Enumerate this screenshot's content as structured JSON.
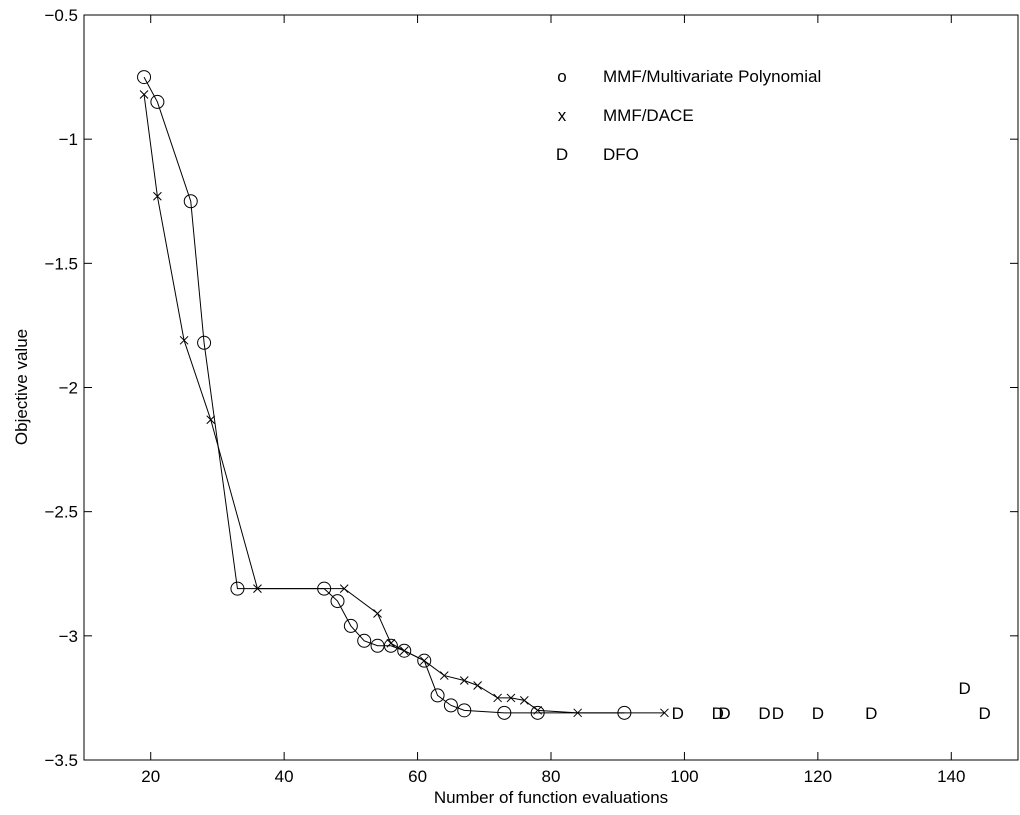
{
  "chart_data": {
    "type": "line",
    "title": "",
    "xlabel": "Number of function evaluations",
    "ylabel": "Objective value",
    "xlim": [
      10,
      150
    ],
    "ylim": [
      -3.5,
      -0.5
    ],
    "xticks": [
      20,
      40,
      60,
      80,
      100,
      120,
      140
    ],
    "yticks": [
      -0.5,
      -1,
      -1.5,
      -2,
      -2.5,
      -3,
      -3.5
    ],
    "xtick_labels": [
      "20",
      "40",
      "60",
      "80",
      "100",
      "120",
      "140"
    ],
    "ytick_labels": [
      "−0.5",
      "−1",
      "−1.5",
      "−2",
      "−2.5",
      "−3",
      "−3.5"
    ],
    "grid": false,
    "legend_position": "top-right",
    "legend": [
      {
        "marker": "o",
        "label": "MMF/Multivariate Polynomial"
      },
      {
        "marker": "x",
        "label": "MMF/DACE"
      },
      {
        "marker": "D",
        "label": "DFO"
      }
    ],
    "series": [
      {
        "name": "MMF/Multivariate Polynomial",
        "marker": "o",
        "line": true,
        "x": [
          19,
          21,
          26,
          28,
          33,
          46,
          48,
          50,
          52,
          54,
          56,
          58,
          61,
          63,
          65,
          67,
          73,
          78,
          91
        ],
        "y": [
          -0.75,
          -0.85,
          -1.25,
          -1.82,
          -2.81,
          -2.81,
          -2.86,
          -2.96,
          -3.02,
          -3.04,
          -3.04,
          -3.06,
          -3.1,
          -3.24,
          -3.28,
          -3.3,
          -3.31,
          -3.31,
          -3.31
        ]
      },
      {
        "name": "MMF/DACE",
        "marker": "x",
        "line": true,
        "x": [
          19,
          21,
          25,
          29,
          36,
          49,
          54,
          56,
          58,
          61,
          64,
          67,
          69,
          72,
          74,
          76,
          78,
          84,
          97
        ],
        "y": [
          -0.82,
          -1.23,
          -1.81,
          -2.13,
          -2.81,
          -2.81,
          -2.91,
          -3.03,
          -3.06,
          -3.1,
          -3.16,
          -3.18,
          -3.2,
          -3.25,
          -3.25,
          -3.26,
          -3.3,
          -3.31,
          -3.31
        ]
      },
      {
        "name": "DFO",
        "marker": "D",
        "line": false,
        "x": [
          99,
          105,
          106,
          112,
          114,
          120,
          128,
          142,
          145
        ],
        "y": [
          -3.31,
          -3.31,
          -3.31,
          -3.31,
          -3.31,
          -3.31,
          -3.31,
          -3.21,
          -3.31
        ]
      }
    ]
  }
}
